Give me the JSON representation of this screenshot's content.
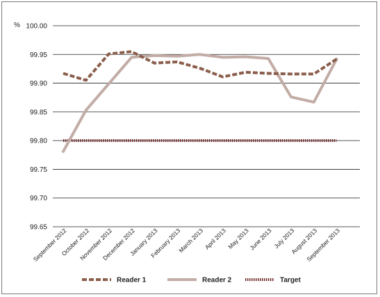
{
  "chart_data": {
    "type": "line",
    "title": "",
    "ylabel": "%",
    "xlabel": "",
    "ylim": [
      99.65,
      100.0
    ],
    "yticks": [
      "100.00",
      "99.95",
      "99.90",
      "99.85",
      "99.80",
      "99.75",
      "99.70",
      "99.65"
    ],
    "grid": "horizontal",
    "legend_position": "bottom",
    "categories": [
      "September 2012",
      "October 2012",
      "November 2012",
      "December 2012",
      "January 2013",
      "February 2013",
      "March 2013",
      "April 2013",
      "May 2013",
      "June 2013",
      "July 2013",
      "August 2013",
      "September 2013"
    ],
    "series": [
      {
        "name": "Reader 1",
        "color": "#8b5e4c",
        "dash": "dashed",
        "values": [
          99.917,
          99.905,
          99.951,
          99.955,
          99.935,
          99.937,
          99.926,
          99.911,
          99.919,
          99.917,
          99.916,
          99.916,
          99.942
        ]
      },
      {
        "name": "Reader 2",
        "color": "#c2aca6",
        "dash": "solid",
        "values": [
          99.781,
          99.853,
          99.899,
          99.945,
          99.948,
          99.947,
          99.95,
          99.945,
          99.946,
          99.943,
          99.876,
          99.867,
          99.942
        ]
      },
      {
        "name": "Target",
        "color": "#6e2424",
        "dash": "dotted",
        "values": [
          99.8,
          99.8,
          99.8,
          99.8,
          99.8,
          99.8,
          99.8,
          99.8,
          99.8,
          99.8,
          99.8,
          99.8,
          99.8
        ]
      }
    ]
  }
}
